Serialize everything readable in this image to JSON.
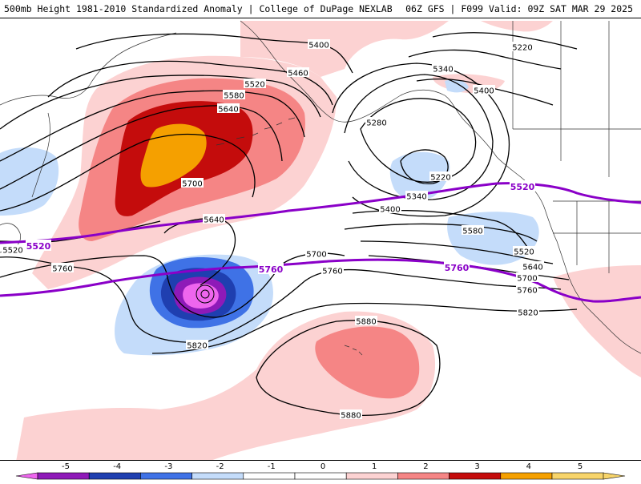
{
  "header": {
    "left": "500mb Height 1981-2010 Standardized Anomaly | College of DuPage NEXLAB",
    "right": "06Z GFS | F099 Valid: 09Z SAT MAR 29 2025"
  },
  "colors": {
    "neg5": "#ee66ee",
    "neg4": "#8e1ab8",
    "neg3": "#1f3fb0",
    "neg2": "#3f72e6",
    "neg1": "#c4dcfa",
    "zero": "#ffffff",
    "pos1": "#fcd2d2",
    "pos2": "#f58585",
    "pos3": "#c40c0c",
    "pos4": "#f5a000",
    "pos5": "#f7d46a",
    "purple_contour": "#8a00c8",
    "height_contour": "#000000",
    "coastline": "#333333"
  },
  "height_labels": [
    {
      "id": "h5400a",
      "text": "5400"
    },
    {
      "id": "h5460",
      "text": "5460"
    },
    {
      "id": "h5520a",
      "text": "5520"
    },
    {
      "id": "h5580a",
      "text": "5580"
    },
    {
      "id": "h5640a",
      "text": "5640"
    },
    {
      "id": "h5700a",
      "text": "5700"
    },
    {
      "id": "h5640b",
      "text": "5640"
    },
    {
      "id": "h5520b",
      "text": "5520"
    },
    {
      "id": "h5760a",
      "text": "5760"
    },
    {
      "id": "h5700b",
      "text": "5700"
    },
    {
      "id": "h5760b",
      "text": "5760"
    },
    {
      "id": "h5820a",
      "text": "5820"
    },
    {
      "id": "h5880a",
      "text": "5880"
    },
    {
      "id": "h5880b",
      "text": "5880"
    },
    {
      "id": "h5220a",
      "text": "5220"
    },
    {
      "id": "h5340a",
      "text": "5340"
    },
    {
      "id": "h5400b",
      "text": "5400"
    },
    {
      "id": "h5280",
      "text": "5280"
    },
    {
      "id": "h5220b",
      "text": "5220"
    },
    {
      "id": "h5340b",
      "text": "5340"
    },
    {
      "id": "h5400c",
      "text": "5400"
    },
    {
      "id": "h5580b",
      "text": "5580"
    },
    {
      "id": "h5520c",
      "text": "5520"
    },
    {
      "id": "h5640c",
      "text": "5640"
    },
    {
      "id": "h5700c",
      "text": "5700"
    },
    {
      "id": "h5760c",
      "text": "5760"
    },
    {
      "id": "h5820b",
      "text": "5820"
    }
  ],
  "purple_labels": [
    {
      "id": "p5520a",
      "text": "5520"
    },
    {
      "id": "p5520b",
      "text": "5520"
    },
    {
      "id": "p5760a",
      "text": "5760"
    },
    {
      "id": "p5760b",
      "text": "5760"
    }
  ],
  "colorbar": {
    "ticks": [
      "-5",
      "-4",
      "-3",
      "-2",
      "-1",
      "0",
      "1",
      "2",
      "3",
      "4",
      "5"
    ]
  }
}
